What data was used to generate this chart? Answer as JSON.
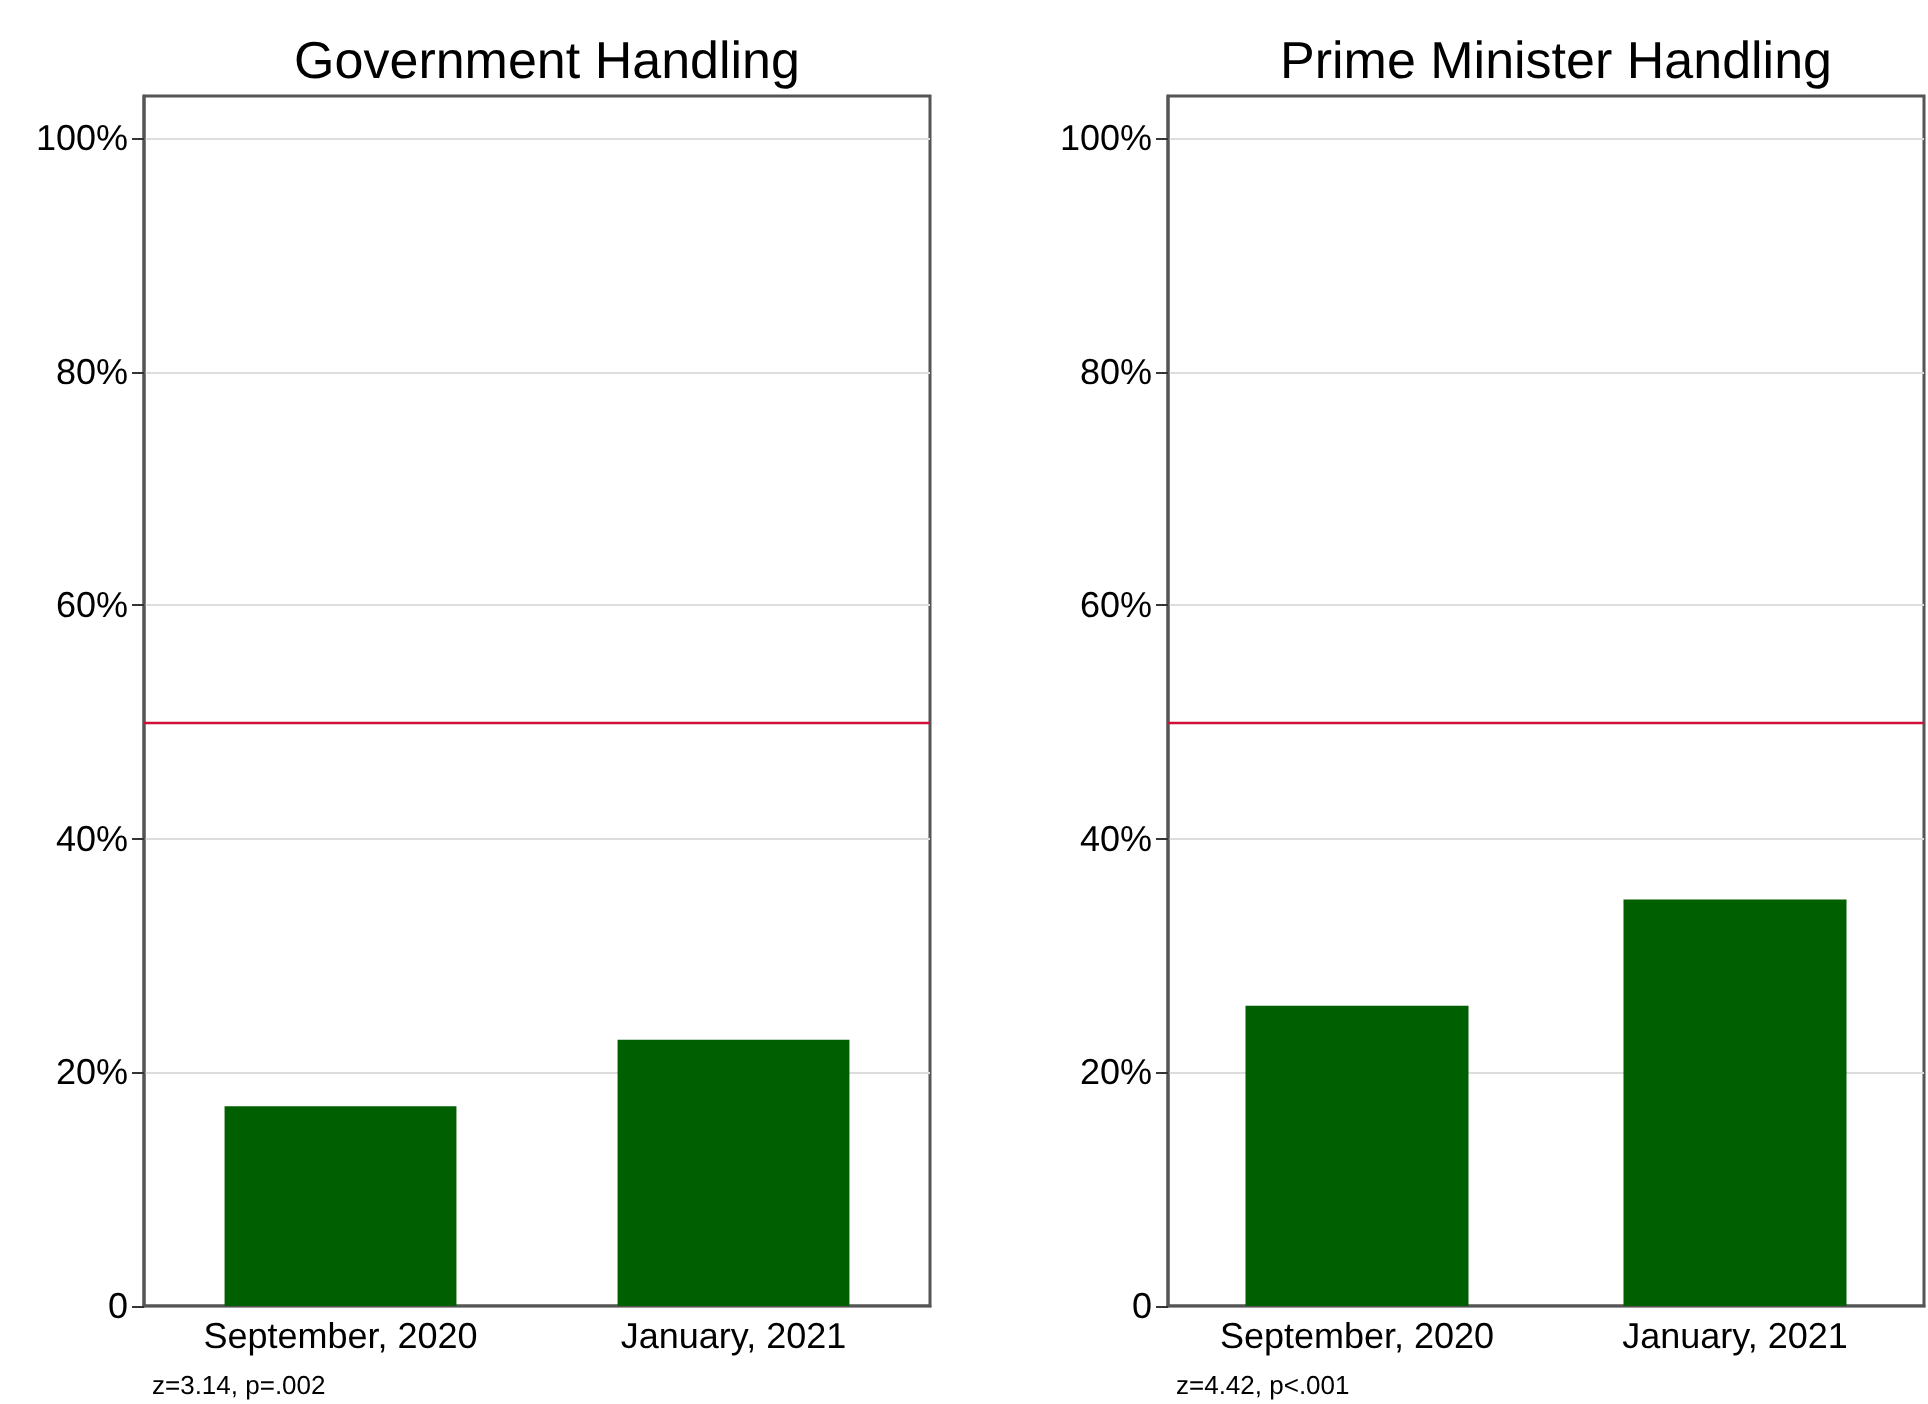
{
  "chart_data": [
    {
      "type": "bar",
      "title": "Government Handling",
      "categories": [
        "September, 2020",
        "January, 2021"
      ],
      "values": [
        17.1,
        22.8
      ],
      "color": "#005f00",
      "ylim": [
        0,
        103.6
      ],
      "yticks": [
        {
          "value": 0,
          "label": "0"
        },
        {
          "value": 20,
          "label": "20%"
        },
        {
          "value": 40,
          "label": "40%"
        },
        {
          "value": 60,
          "label": "60%"
        },
        {
          "value": 80,
          "label": "80%"
        },
        {
          "value": 100,
          "label": "100%"
        }
      ],
      "grid": "y",
      "ref_lines": [
        {
          "axis": "y",
          "value": 50,
          "color": "#d0103a"
        }
      ],
      "annotations": [
        "z=3.14, p=.002"
      ]
    },
    {
      "type": "bar",
      "title": "Prime Minister Handling",
      "categories": [
        "September, 2020",
        "January, 2021"
      ],
      "values": [
        25.7,
        34.8
      ],
      "color": "#005f00",
      "ylim": [
        0,
        103.6
      ],
      "yticks": [
        {
          "value": 0,
          "label": "0"
        },
        {
          "value": 20,
          "label": "20%"
        },
        {
          "value": 40,
          "label": "40%"
        },
        {
          "value": 60,
          "label": "60%"
        },
        {
          "value": 80,
          "label": "80%"
        },
        {
          "value": 100,
          "label": "100%"
        }
      ],
      "grid": "y",
      "ref_lines": [
        {
          "axis": "y",
          "value": 50,
          "color": "#d0103a"
        }
      ],
      "annotations": [
        "z=4.42, p<.001"
      ]
    }
  ]
}
